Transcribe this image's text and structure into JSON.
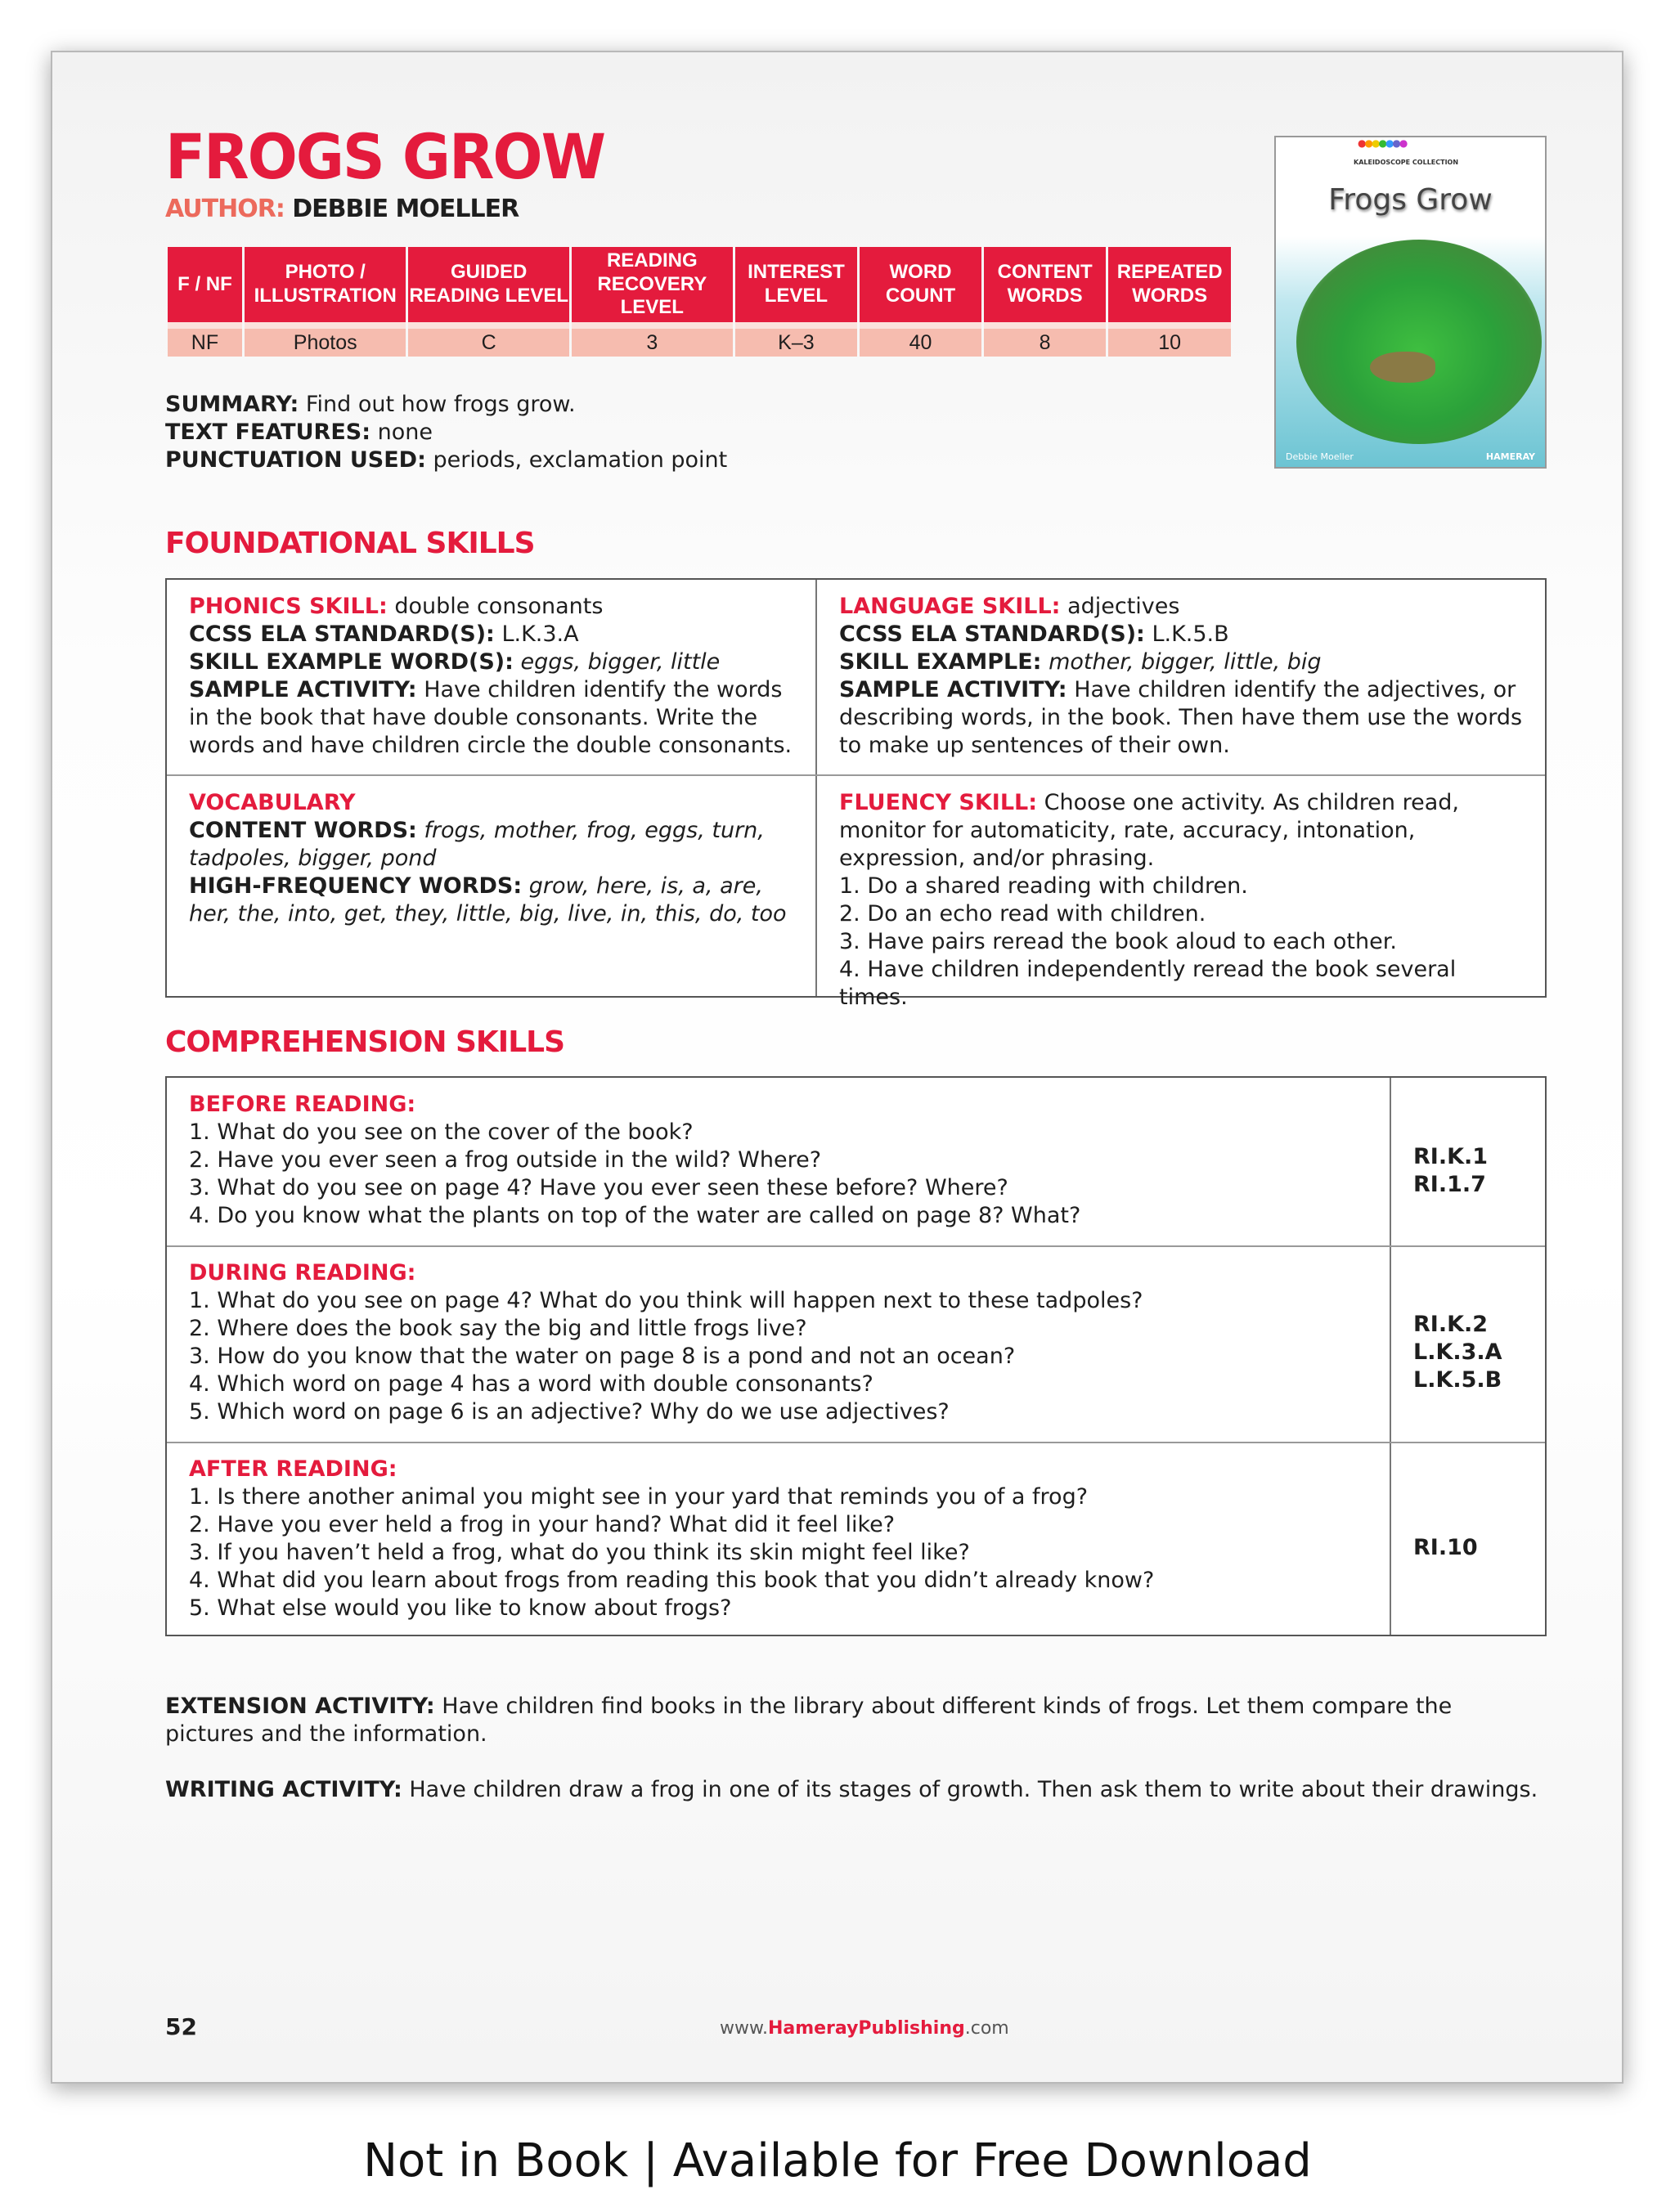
{
  "title": "FROGS GROW",
  "author": {
    "label": "AUTHOR:",
    "name": "DEBBIE MOELLER"
  },
  "info_table": {
    "headers": [
      "F / NF",
      "PHOTO / ILLUSTRATION",
      "GUIDED READING LEVEL",
      "READING RECOVERY LEVEL",
      "INTEREST LEVEL",
      "WORD COUNT",
      "CONTENT WORDS",
      "REPEATED WORDS"
    ],
    "values": [
      "NF",
      "Photos",
      "C",
      "3",
      "K–3",
      "40",
      "8",
      "10"
    ]
  },
  "meta": {
    "summary_label": "SUMMARY:",
    "summary": "Find out how frogs grow.",
    "features_label": "TEXT FEATURES:",
    "features": "none",
    "punct_label": "PUNCTUATION USED:",
    "punct": "periods, exclamation point"
  },
  "cover": {
    "collection": "KALEIDOSCOPE COLLECTION",
    "title": "Frogs Grow",
    "author": "Debbie Moeller",
    "publisher": "HAMERAY"
  },
  "foundational": {
    "heading": "FOUNDATIONAL SKILLS",
    "phonics": {
      "label": "PHONICS SKILL:",
      "value": "double consonants",
      "std_label": "CCSS ELA STANDARD(S):",
      "std": "L.K.3.A",
      "ex_label": "SKILL EXAMPLE WORD(S):",
      "ex": "eggs, bigger, little",
      "act_label": "SAMPLE ACTIVITY:",
      "act": "Have children identify the words in the book that have double consonants. Write the words and have children circle the double consonants."
    },
    "language": {
      "label": "LANGUAGE SKILL:",
      "value": "adjectives",
      "std_label": "CCSS ELA STANDARD(S):",
      "std": "L.K.5.B",
      "ex_label": "SKILL EXAMPLE:",
      "ex": "mother, bigger, little, big",
      "act_label": "SAMPLE ACTIVITY:",
      "act": "Have children identify the adjectives, or describing words, in the book. Then have them use the words to make up sentences of their own."
    },
    "vocabulary": {
      "label": "VOCABULARY",
      "content_label": "CONTENT WORDS:",
      "content": "frogs, mother, frog, eggs, turn, tadpoles, bigger, pond",
      "hf_label": "HIGH-FREQUENCY WORDS:",
      "hf": "grow, here, is, a, are, her, the, into, get, they, little, big, live, in, this, do, too"
    },
    "fluency": {
      "label": "FLUENCY SKILL:",
      "intro": "Choose one activity. As children read, monitor for automaticity, rate, accuracy, intonation, expression, and/or phrasing.",
      "items": [
        "1. Do a shared reading with children.",
        "2. Do an echo read with children.",
        "3. Have pairs reread the book aloud to each other.",
        "4. Have children independently reread the book several times."
      ]
    }
  },
  "comprehension": {
    "heading": "COMPREHENSION SKILLS",
    "sections": [
      {
        "label": "BEFORE READING:",
        "items": [
          "1. What do you see on the cover of the book?",
          "2. Have you ever seen a frog outside in the wild? Where?",
          "3. What do you see on page 4? Have you ever seen these before? Where?",
          "4. Do you know what the plants on top of the water are called on page 8? What?"
        ],
        "standards": [
          "RI.K.1",
          "RI.1.7"
        ]
      },
      {
        "label": "DURING READING:",
        "items": [
          "1. What do you see on page 4? What do you think will happen next to these tadpoles?",
          "2. Where does the book say the big and little frogs live?",
          "3. How do you know that the water on page 8 is a pond and not an ocean?",
          "4. Which word on page 4 has a word with double consonants?",
          "5. Which word on page 6 is an adjective? Why do we use adjectives?"
        ],
        "standards": [
          "RI.K.2",
          "L.K.3.A",
          "L.K.5.B"
        ]
      },
      {
        "label": "AFTER READING:",
        "items": [
          "1. Is there another animal you might see in your yard that reminds you of a frog?",
          "2. Have you ever held a frog in your hand? What did it feel like?",
          "3. If you haven’t held a frog, what do you think its skin might feel like?",
          "4. What did you learn about frogs from reading this book that you didn’t already know?",
          "5. What else would you like to know about frogs?"
        ],
        "standards": [
          "RI.10"
        ]
      }
    ]
  },
  "extension": {
    "label": "EXTENSION ACTIVITY:",
    "text": "Have children find books in the library about different kinds of frogs. Let them compare the pictures and the information."
  },
  "writing": {
    "label": "WRITING ACTIVITY:",
    "text": "Have children draw a frog in one of its stages of growth. Then ask them to write about their drawings."
  },
  "footer": {
    "page": "52",
    "url_pre": "www.",
    "url_brand": "HamerayPublishing",
    "url_post": ".com"
  },
  "banner": "Not in Book | Available for Free Download",
  "colors": {
    "accent": "#e41b3d",
    "table_row": "#f6bcaf"
  }
}
